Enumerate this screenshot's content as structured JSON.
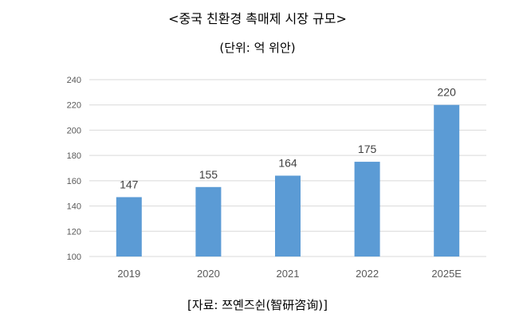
{
  "header": {
    "title": "<중국 친환경 촉매제 시장 규모>",
    "subtitle": "(단위: 억 위안)"
  },
  "footer": {
    "source": "[자료: 쯔옌즈쉰(智研咨询)]"
  },
  "chart_data": {
    "type": "bar",
    "title": "<중국 친환경 촉매제 시장 규모>",
    "subtitle": "(단위: 억 위안)",
    "categories": [
      "2019",
      "2020",
      "2021",
      "2022",
      "2025E"
    ],
    "values": [
      147,
      155,
      164,
      175,
      220
    ],
    "data_labels": [
      "147",
      "155",
      "164",
      "175",
      "220"
    ],
    "yticks": [
      100,
      120,
      140,
      160,
      180,
      200,
      220,
      240
    ],
    "ylim": [
      100,
      240
    ],
    "grid": true,
    "legend": "none",
    "colors": {
      "bar": "#5B9BD5",
      "grid": "#D9D9D9",
      "tick_text": "#595959",
      "label_text": "#404040"
    }
  }
}
